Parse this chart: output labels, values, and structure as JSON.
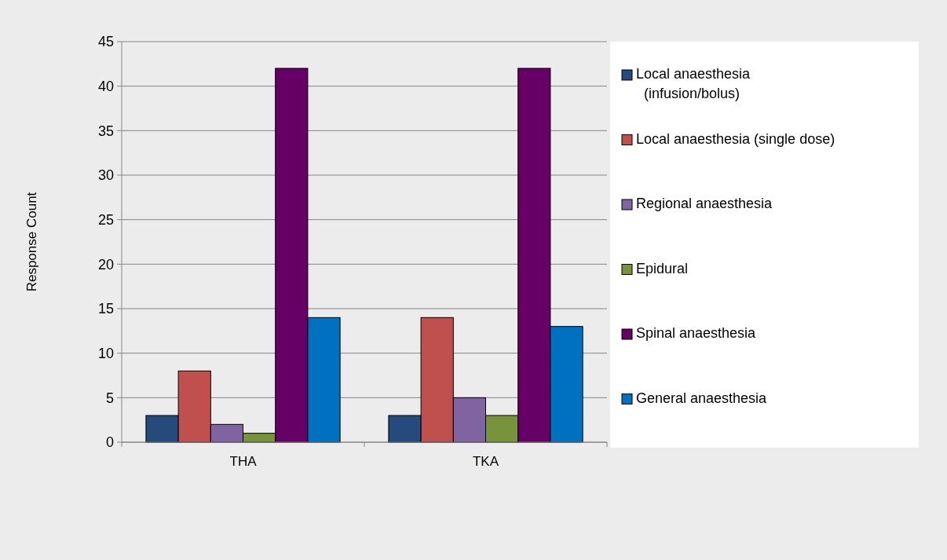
{
  "chart_data": {
    "type": "bar",
    "ylabel": "Response Count",
    "categories": [
      "THA",
      "TKA"
    ],
    "series": [
      {
        "name": "Local anaesthesia (infusion/bolus)",
        "color": "#254b7c",
        "values": [
          3,
          3
        ]
      },
      {
        "name": "Local anaesthesia (single dose)",
        "color": "#c0504d",
        "values": [
          8,
          14
        ]
      },
      {
        "name": "Regional anaesthesia",
        "color": "#8064a2",
        "values": [
          2,
          5
        ]
      },
      {
        "name": "Epidural",
        "color": "#77933c",
        "values": [
          1,
          3
        ]
      },
      {
        "name": "Spinal anaesthesia",
        "color": "#660066",
        "values": [
          42,
          42
        ]
      },
      {
        "name": "General anaesthesia",
        "color": "#0070c0",
        "values": [
          14,
          13
        ]
      }
    ],
    "ylim": [
      0,
      45
    ],
    "yticks": [
      0,
      5,
      10,
      15,
      20,
      25,
      30,
      35,
      40,
      45
    ],
    "grid": "y",
    "legend": "right"
  }
}
